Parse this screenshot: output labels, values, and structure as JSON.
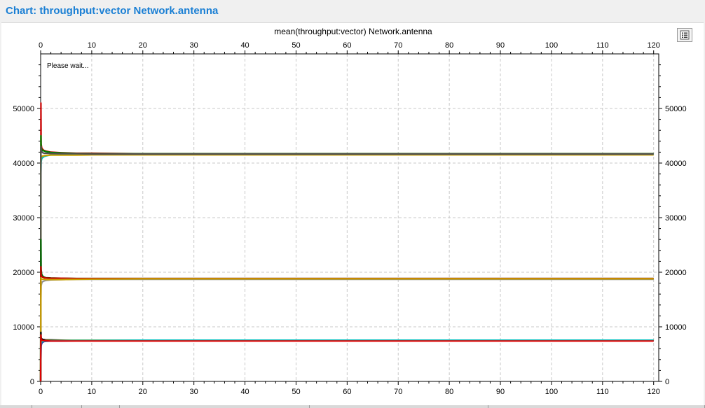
{
  "window": {
    "title": "Chart: throughput:vector Network.antenna"
  },
  "status": {
    "loading_text": "Please wait..."
  },
  "legend_button": {
    "icon": "legend-list-icon"
  },
  "chart_data": {
    "type": "line",
    "title": "mean(throughput:vector) Network.antenna",
    "xlabel": "",
    "ylabel": "",
    "xlim": [
      0,
      121
    ],
    "ylim": [
      0,
      60000
    ],
    "x_ticks": [
      0,
      10,
      20,
      30,
      40,
      50,
      60,
      70,
      80,
      90,
      100,
      110,
      120
    ],
    "y_ticks": [
      0,
      10000,
      20000,
      30000,
      40000,
      50000
    ],
    "grid": true,
    "legend": "none",
    "series": [
      {
        "color": "#c80000",
        "x": [
          0,
          0.05,
          0.1,
          0.2,
          0.4,
          0.7,
          1,
          2,
          4,
          7,
          10,
          20,
          40,
          80,
          120
        ],
        "y": [
          0,
          51000,
          43500,
          42800,
          42500,
          42300,
          42200,
          42000,
          41900,
          41800,
          41800,
          41700,
          41700,
          41700,
          41700
        ]
      },
      {
        "color": "#008000",
        "x": [
          0,
          0.05,
          0.1,
          0.2,
          0.4,
          0.7,
          1,
          2,
          4,
          7,
          10,
          20,
          40,
          80,
          120
        ],
        "y": [
          0,
          45000,
          42900,
          42500,
          42300,
          42200,
          42100,
          41950,
          41850,
          41750,
          41700,
          41700,
          41700,
          41700,
          41700
        ]
      },
      {
        "color": "#00c0c0",
        "x": [
          0,
          0.05,
          0.1,
          0.2,
          0.4,
          0.7,
          1,
          2,
          4,
          7,
          10,
          20,
          40,
          80,
          120
        ],
        "y": [
          0,
          38000,
          40200,
          40800,
          41000,
          41200,
          41300,
          41500,
          41550,
          41600,
          41600,
          41650,
          41650,
          41650,
          41650
        ]
      },
      {
        "color": "#c8a000",
        "x": [
          0,
          0.05,
          0.1,
          0.2,
          0.4,
          0.7,
          1,
          2,
          4,
          7,
          10,
          20,
          40,
          80,
          120
        ],
        "y": [
          0,
          40000,
          41000,
          41200,
          41300,
          41350,
          41400,
          41450,
          41450,
          41450,
          41500,
          41500,
          41500,
          41500,
          41500
        ]
      },
      {
        "color": "#505050",
        "x": [
          0,
          0.05,
          0.1,
          0.2,
          0.4,
          0.7,
          1,
          2,
          4,
          7,
          10,
          20,
          40,
          80,
          120
        ],
        "y": [
          0,
          43000,
          42400,
          42100,
          41900,
          41800,
          41800,
          41750,
          41700,
          41700,
          41650,
          41650,
          41650,
          41650,
          41650
        ]
      },
      {
        "color": "#006400",
        "x": [
          0,
          0.05,
          0.1,
          0.2,
          0.4,
          0.7,
          1,
          2,
          4,
          7,
          10,
          20,
          40,
          80,
          120
        ],
        "y": [
          0,
          26000,
          20500,
          19600,
          19300,
          19100,
          19000,
          18950,
          18900,
          18850,
          18850,
          18850,
          18850,
          18850,
          18850
        ]
      },
      {
        "color": "#c80000",
        "x": [
          0,
          0.05,
          0.1,
          0.2,
          0.4,
          0.7,
          1,
          2,
          4,
          7,
          10,
          20,
          40,
          80,
          120
        ],
        "y": [
          0,
          21000,
          19400,
          19200,
          19100,
          19000,
          18950,
          18900,
          18900,
          18850,
          18850,
          18850,
          18850,
          18850,
          18850
        ]
      },
      {
        "color": "#909090",
        "x": [
          0,
          0.05,
          0.1,
          0.2,
          0.4,
          0.7,
          1,
          2,
          4,
          7,
          10,
          20,
          40,
          80,
          120
        ],
        "y": [
          0,
          15000,
          17500,
          18000,
          18300,
          18400,
          18500,
          18600,
          18650,
          18700,
          18700,
          18700,
          18700,
          18700,
          18700
        ]
      },
      {
        "color": "#c8a000",
        "x": [
          0,
          0.05,
          0.1,
          0.2,
          0.4,
          0.7,
          1,
          2,
          4,
          7,
          10,
          20,
          40,
          80,
          120
        ],
        "y": [
          0,
          19000,
          18800,
          18750,
          18700,
          18700,
          18650,
          18650,
          18650,
          18700,
          18750,
          18800,
          18800,
          18800,
          18800
        ]
      },
      {
        "color": "#0000a0",
        "x": [
          0,
          0.05,
          0.1,
          0.2,
          0.4,
          0.7,
          1,
          2,
          4,
          7,
          10,
          20,
          40,
          80,
          120
        ],
        "y": [
          0,
          4000,
          6500,
          7000,
          7200,
          7300,
          7350,
          7400,
          7400,
          7450,
          7450,
          7450,
          7450,
          7450,
          7450
        ]
      },
      {
        "color": "#000000",
        "x": [
          0,
          0.05,
          0.1,
          0.2,
          0.4,
          0.7,
          1,
          2,
          4,
          7,
          10,
          20,
          40,
          80,
          120
        ],
        "y": [
          0,
          9000,
          8000,
          7800,
          7700,
          7650,
          7600,
          7600,
          7550,
          7500,
          7500,
          7500,
          7500,
          7500,
          7500
        ]
      },
      {
        "color": "#c8a000",
        "x": [
          0,
          0.05,
          0.1,
          0.2,
          0.4,
          0.7,
          1,
          2,
          4,
          7,
          10,
          20,
          40,
          80,
          120
        ],
        "y": [
          0,
          7000,
          7300,
          7400,
          7450,
          7450,
          7500,
          7500,
          7500,
          7550,
          7550,
          7550,
          7550,
          7550,
          7550
        ]
      },
      {
        "color": "#00c0c0",
        "x": [
          0,
          0.05,
          0.1,
          0.2,
          0.4,
          0.7,
          1,
          2,
          4,
          7,
          10,
          20,
          40,
          80,
          120
        ],
        "y": [
          0,
          6000,
          7000,
          7200,
          7300,
          7350,
          7400,
          7450,
          7450,
          7500,
          7500,
          7550,
          7550,
          7550,
          7550
        ]
      },
      {
        "color": "#e00000",
        "x": [
          0,
          0.05,
          0.1,
          0.2,
          0.4,
          0.7,
          1,
          2,
          4,
          7,
          10,
          20,
          40,
          80,
          120
        ],
        "y": [
          0,
          8500,
          7700,
          7600,
          7500,
          7450,
          7450,
          7400,
          7400,
          7400,
          7400,
          7400,
          7400,
          7400,
          7400
        ]
      }
    ]
  }
}
